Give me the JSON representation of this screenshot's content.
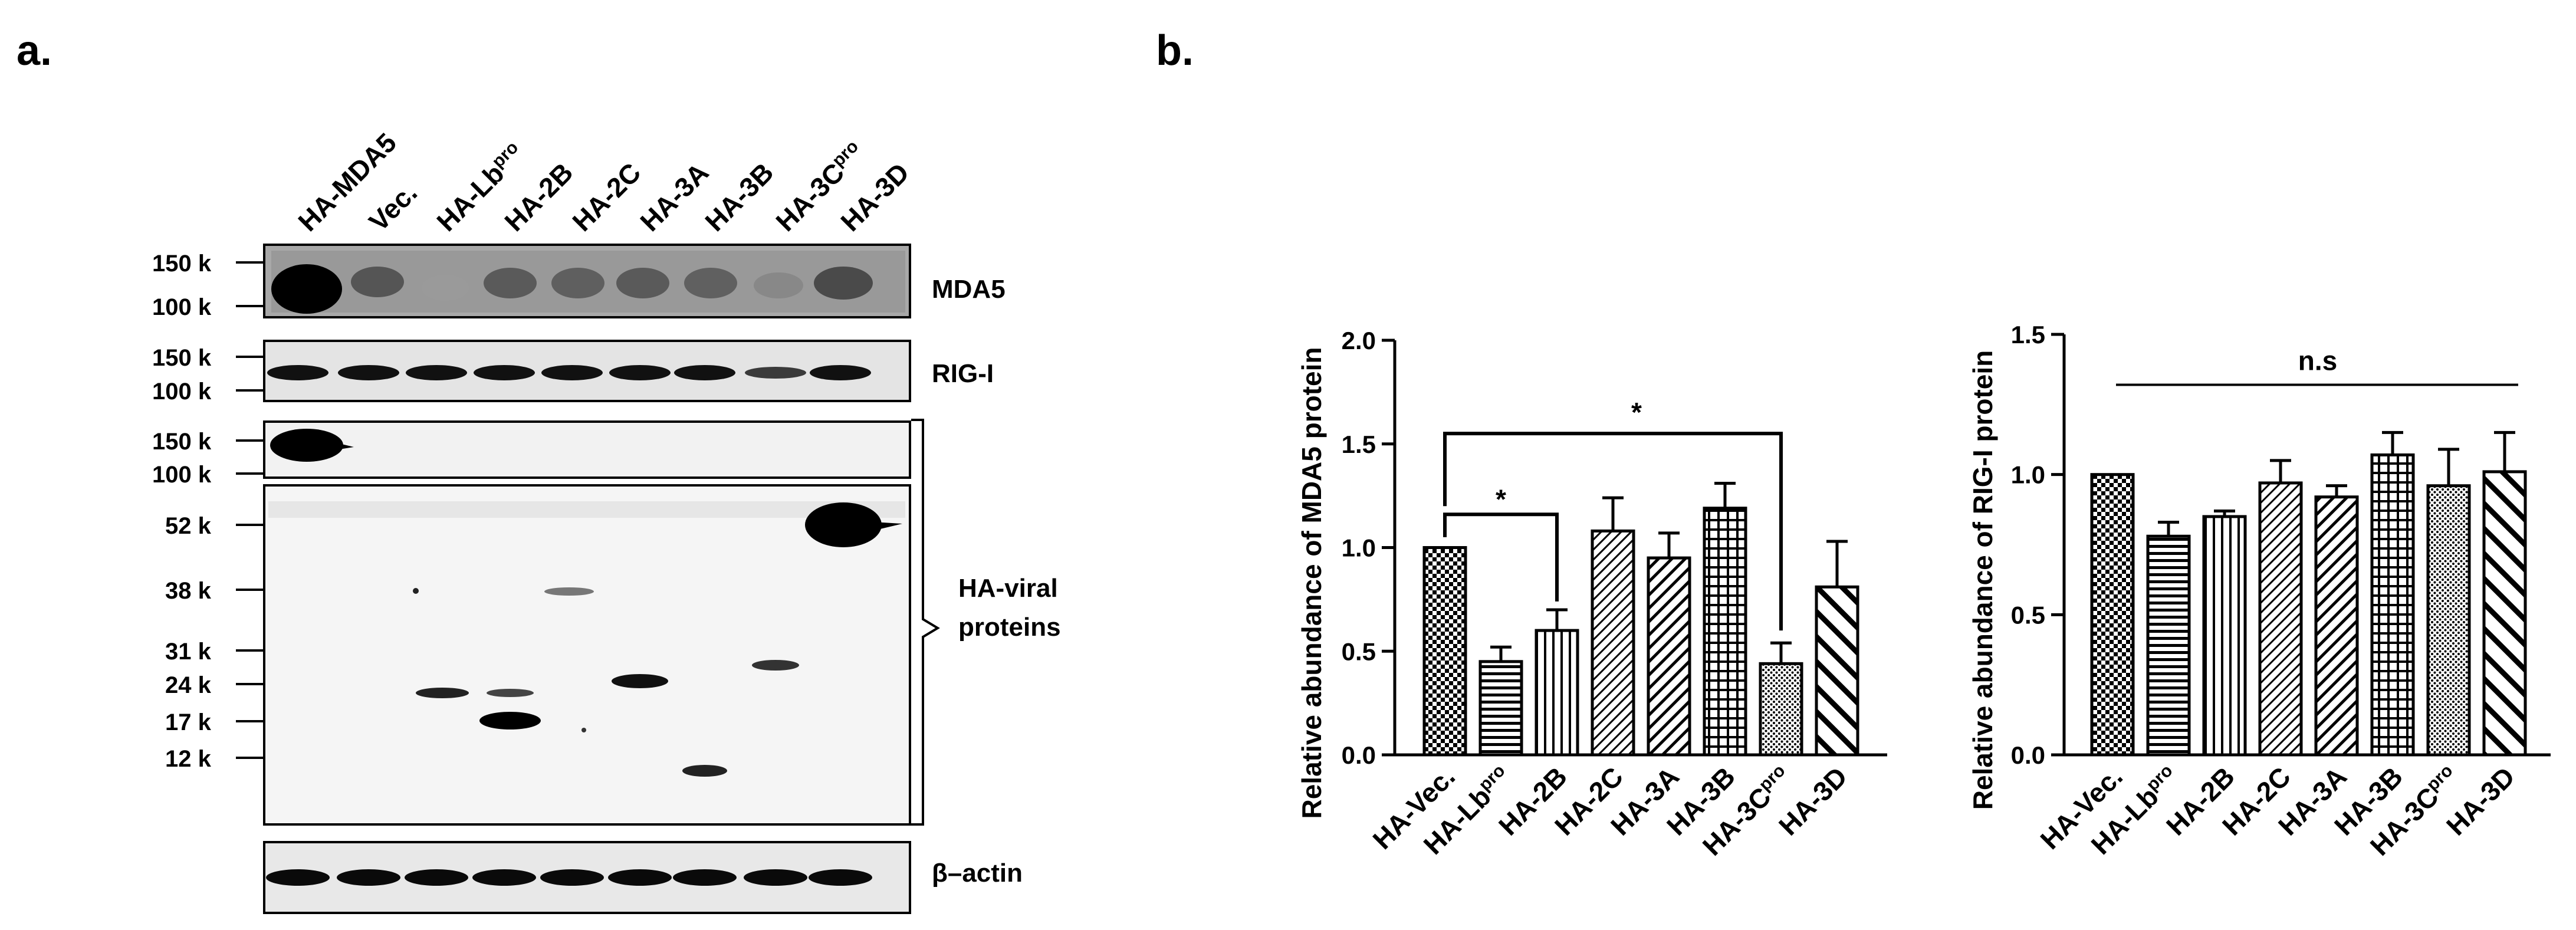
{
  "panel_a": {
    "label": "a.",
    "lanes": [
      {
        "base": "HA-MDA5",
        "sup": ""
      },
      {
        "base": "Vec.",
        "sup": ""
      },
      {
        "base": "HA-Lb",
        "sup": "pro"
      },
      {
        "base": "HA-2B",
        "sup": ""
      },
      {
        "base": "HA-2C",
        "sup": ""
      },
      {
        "base": "HA-3A",
        "sup": ""
      },
      {
        "base": "HA-3B",
        "sup": ""
      },
      {
        "base": "HA-3C",
        "sup": "pro"
      },
      {
        "base": "HA-3D",
        "sup": ""
      }
    ],
    "blots": {
      "mda5": {
        "name": "MDA5",
        "markers": [
          "150 k",
          "100 k"
        ]
      },
      "rigi": {
        "name": "RIG-I",
        "markers": [
          "150 k",
          "100 k"
        ]
      },
      "ha_top": {
        "markers": [
          "150 k",
          "100 k"
        ]
      },
      "ha_main": {
        "markers": [
          "52 k",
          "38 k",
          "31 k",
          "24 k",
          "17 k",
          "12 k"
        ]
      },
      "ha_name_line1": "HA-viral",
      "ha_name_line2": "proteins",
      "actin": {
        "name": "β–actin"
      }
    }
  },
  "panel_b": {
    "label": "b.",
    "categories": [
      {
        "base": "HA-Vec.",
        "sup": ""
      },
      {
        "base": "HA-Lb",
        "sup": "pro"
      },
      {
        "base": "HA-2B",
        "sup": ""
      },
      {
        "base": "HA-2C",
        "sup": ""
      },
      {
        "base": "HA-3A",
        "sup": ""
      },
      {
        "base": "HA-3B",
        "sup": ""
      },
      {
        "base": "HA-3C",
        "sup": "pro"
      },
      {
        "base": "HA-3D",
        "sup": ""
      }
    ],
    "significance": {
      "star1": "*",
      "star2": "*",
      "ns": "n.s"
    }
  },
  "chart_data": [
    {
      "type": "bar",
      "ylabel": "Relative abundance of MDA5 protein",
      "categories": [
        "HA-Vec.",
        "HA-Lbpro",
        "HA-2B",
        "HA-2C",
        "HA-3A",
        "HA-3B",
        "HA-3Cpro",
        "HA-3D"
      ],
      "values": [
        1.0,
        0.45,
        0.6,
        1.08,
        0.95,
        1.19,
        0.44,
        0.81
      ],
      "errors": [
        0.0,
        0.07,
        0.1,
        0.16,
        0.12,
        0.12,
        0.1,
        0.22
      ],
      "ylim": [
        0,
        2.0
      ],
      "yticks": [
        "0.0",
        "0.5",
        "1.0",
        "1.5",
        "2.0"
      ],
      "ytick_values": [
        0,
        0.5,
        1.0,
        1.5,
        2.0
      ],
      "annotations": [
        "* HA-Vec. vs HA-2B",
        "* HA-Vec. vs HA-3Cpro"
      ]
    },
    {
      "type": "bar",
      "ylabel": "Relative abundance of RIG-I protein",
      "categories": [
        "HA-Vec.",
        "HA-Lbpro",
        "HA-2B",
        "HA-2C",
        "HA-3A",
        "HA-3B",
        "HA-3Cpro",
        "HA-3D"
      ],
      "values": [
        1.0,
        0.78,
        0.85,
        0.97,
        0.92,
        1.07,
        0.96,
        1.01
      ],
      "errors": [
        0.0,
        0.05,
        0.02,
        0.08,
        0.04,
        0.08,
        0.13,
        0.14
      ],
      "ylim": [
        0,
        1.5
      ],
      "yticks": [
        "0.0",
        "0.5",
        "1.0",
        "1.5"
      ],
      "ytick_values": [
        0,
        0.5,
        1.0,
        1.5
      ],
      "annotations": [
        "n.s"
      ]
    }
  ]
}
